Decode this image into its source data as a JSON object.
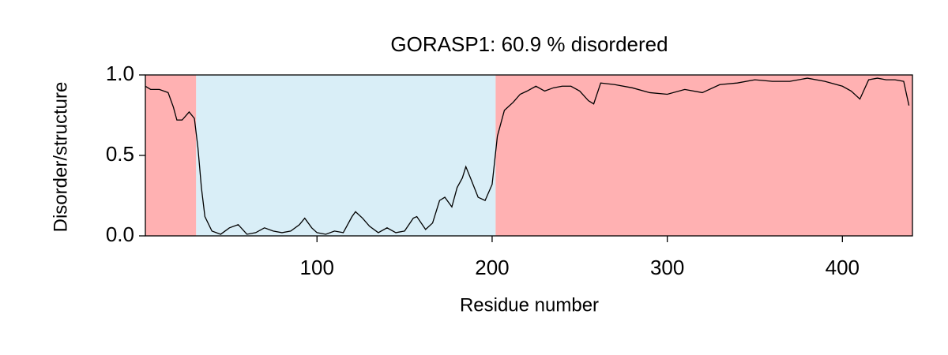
{
  "chart_data": {
    "type": "line",
    "title": "GORASP1: 60.9 % disordered",
    "x_label": "Residue number",
    "y_label": "Disorder/structure",
    "xlim": [
      2,
      440
    ],
    "ylim": [
      0,
      1
    ],
    "xticks": [
      100,
      200,
      300,
      400
    ],
    "yticks": [
      {
        "value": 0,
        "label": "0.0"
      },
      {
        "value": 0.5,
        "label": "0.5"
      },
      {
        "value": 1,
        "label": "1.0"
      }
    ],
    "regions": [
      {
        "start": 2,
        "end": 31,
        "color": "#ffb1b2"
      },
      {
        "start": 31,
        "end": 202,
        "color": "#d9eef7"
      },
      {
        "start": 202,
        "end": 440,
        "color": "#ffb1b2"
      }
    ],
    "line_color": "#000000",
    "x": [
      2,
      5,
      10,
      15,
      18,
      20,
      23,
      27,
      30,
      32,
      34,
      36,
      40,
      45,
      50,
      55,
      60,
      65,
      70,
      75,
      80,
      85,
      90,
      93,
      97,
      100,
      105,
      110,
      115,
      120,
      122,
      126,
      130,
      135,
      140,
      145,
      150,
      155,
      157,
      162,
      166,
      170,
      173,
      177,
      180,
      183,
      185,
      188,
      192,
      196,
      200,
      203,
      207,
      212,
      216,
      220,
      225,
      230,
      235,
      240,
      245,
      250,
      255,
      258,
      262,
      270,
      280,
      290,
      300,
      310,
      320,
      330,
      340,
      350,
      360,
      370,
      380,
      390,
      400,
      405,
      410,
      415,
      420,
      425,
      430,
      435,
      438
    ],
    "values": [
      0.93,
      0.91,
      0.91,
      0.89,
      0.8,
      0.72,
      0.72,
      0.77,
      0.73,
      0.55,
      0.3,
      0.12,
      0.03,
      0.01,
      0.05,
      0.07,
      0.01,
      0.02,
      0.05,
      0.03,
      0.02,
      0.03,
      0.07,
      0.11,
      0.05,
      0.02,
      0.01,
      0.03,
      0.02,
      0.12,
      0.15,
      0.11,
      0.06,
      0.02,
      0.05,
      0.02,
      0.03,
      0.11,
      0.12,
      0.04,
      0.08,
      0.22,
      0.24,
      0.18,
      0.3,
      0.36,
      0.43,
      0.35,
      0.24,
      0.22,
      0.32,
      0.62,
      0.78,
      0.83,
      0.88,
      0.9,
      0.93,
      0.9,
      0.92,
      0.93,
      0.93,
      0.9,
      0.84,
      0.82,
      0.95,
      0.94,
      0.92,
      0.89,
      0.88,
      0.91,
      0.89,
      0.94,
      0.95,
      0.97,
      0.96,
      0.96,
      0.98,
      0.96,
      0.93,
      0.9,
      0.85,
      0.97,
      0.98,
      0.97,
      0.97,
      0.96,
      0.81
    ]
  }
}
